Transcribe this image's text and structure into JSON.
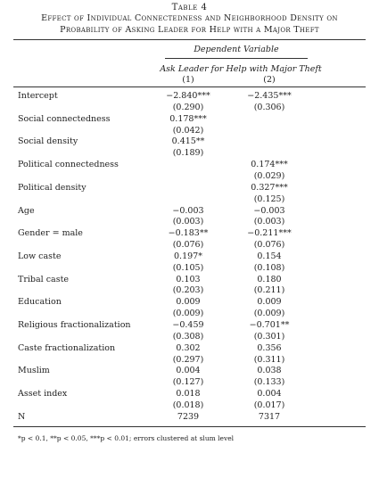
{
  "title": {
    "line1": "Table 4",
    "line2": "Effect of Individual Connectedness and Neighborhood Density on",
    "line3": "Probability of Asking Leader for Help with a Major Theft"
  },
  "header": {
    "dependent_variable": "Dependent Variable",
    "ask_leader": "Ask Leader for Help with Major Theft",
    "col1": "(1)",
    "col2": "(2)"
  },
  "rows": [
    {
      "label": "Intercept",
      "v1": "−2.840***",
      "v2": "−2.435***"
    },
    {
      "label": "",
      "v1": "(0.290)",
      "v2": "(0.306)"
    },
    {
      "label": "Social connectedness",
      "v1": "0.178***",
      "v2": ""
    },
    {
      "label": "",
      "v1": "(0.042)",
      "v2": ""
    },
    {
      "label": "Social density",
      "v1": "0.415**",
      "v2": ""
    },
    {
      "label": "",
      "v1": "(0.189)",
      "v2": ""
    },
    {
      "label": "Political connectedness",
      "v1": "",
      "v2": "0.174***"
    },
    {
      "label": "",
      "v1": "",
      "v2": "(0.029)"
    },
    {
      "label": "Political density",
      "v1": "",
      "v2": "0.327***"
    },
    {
      "label": "",
      "v1": "",
      "v2": "(0.125)"
    },
    {
      "label": "Age",
      "v1": "−0.003",
      "v2": "−0.003"
    },
    {
      "label": "",
      "v1": "(0.003)",
      "v2": "(0.003)"
    },
    {
      "label": "Gender = male",
      "v1": "−0.183**",
      "v2": "−0.211***"
    },
    {
      "label": "",
      "v1": "(0.076)",
      "v2": "(0.076)"
    },
    {
      "label": "Low caste",
      "v1": "0.197*",
      "v2": "0.154"
    },
    {
      "label": "",
      "v1": "(0.105)",
      "v2": "(0.108)"
    },
    {
      "label": "Tribal caste",
      "v1": "0.103",
      "v2": "0.180"
    },
    {
      "label": "",
      "v1": "(0.203)",
      "v2": "(0.211)"
    },
    {
      "label": "Education",
      "v1": "0.009",
      "v2": "0.009"
    },
    {
      "label": "",
      "v1": "(0.009)",
      "v2": "(0.009)"
    },
    {
      "label": "Religious fractionalization",
      "v1": "−0.459",
      "v2": "−0.701**"
    },
    {
      "label": "",
      "v1": "(0.308)",
      "v2": "(0.301)"
    },
    {
      "label": "Caste fractionalization",
      "v1": "0.302",
      "v2": "0.356"
    },
    {
      "label": "",
      "v1": "(0.297)",
      "v2": "(0.311)"
    },
    {
      "label": "Muslim",
      "v1": "0.004",
      "v2": "0.038"
    },
    {
      "label": "",
      "v1": "(0.127)",
      "v2": "(0.133)"
    },
    {
      "label": "Asset index",
      "v1": "0.018",
      "v2": "0.004"
    },
    {
      "label": "",
      "v1": "(0.018)",
      "v2": "(0.017)"
    },
    {
      "label": "N",
      "v1": "7239",
      "v2": "7317"
    }
  ],
  "note": "*p < 0.1, **p < 0.05, ***p < 0.01; errors clustered at slum level"
}
